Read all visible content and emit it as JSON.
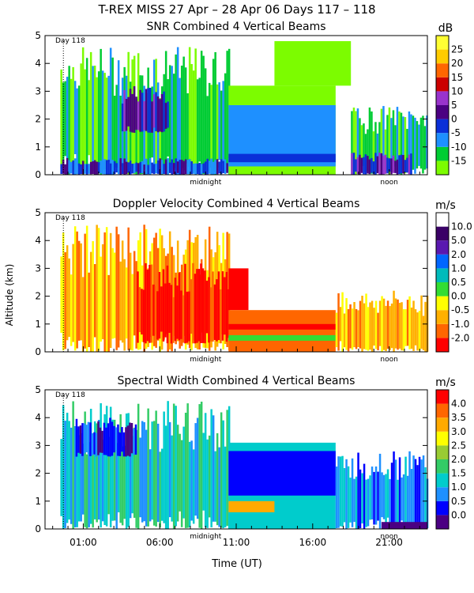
{
  "header": {
    "title": "T-REX MISS    27 Apr – 28 Apr 06 Days 117 – 118"
  },
  "colors": {
    "snr": [
      "#7cfc00",
      "#00cc33",
      "#1e90ff",
      "#0a2fd8",
      "#4b0082",
      "#9933cc",
      "#cc0000",
      "#ff6600",
      "#ffcc00",
      "#ffff33"
    ],
    "velocity": [
      "#ff0000",
      "#ff6600",
      "#ffb000",
      "#ffff00",
      "#33dd33",
      "#00bbbb",
      "#0066ff",
      "#5a18b0",
      "#3a0066",
      "#ffffff"
    ],
    "width": [
      "#4b0082",
      "#0000ff",
      "#1e90ff",
      "#00cccc",
      "#33cc66",
      "#99cc33",
      "#ffff00",
      "#ffaa00",
      "#ff6600",
      "#ff0000"
    ]
  },
  "chart_data": [
    {
      "type": "heatmap",
      "title": "SNR Combined 4 Vertical Beams",
      "day_label": "Day 118",
      "ylabel": "Altitude (km)",
      "ylim": [
        0,
        5
      ],
      "yticks": [
        "0",
        "1",
        "2",
        "3",
        "4",
        "5"
      ],
      "xlim": [
        -1.5,
        23.5
      ],
      "x_markers": [
        {
          "x": 9,
          "label": "midnight"
        },
        {
          "x": 21,
          "label": "noon"
        }
      ],
      "colorbar": {
        "unit": "dB",
        "labels": [
          "-15",
          "-10",
          "-5",
          "0",
          "5",
          "10",
          "15",
          "20",
          "25"
        ]
      },
      "regions": [
        {
          "x": [
            -0.5,
            10.5
          ],
          "y": [
            0,
            4.6
          ],
          "level": 1,
          "noise": true
        },
        {
          "x": [
            3.5,
            6.5
          ],
          "y": [
            1.5,
            3.2
          ],
          "level": 4,
          "noise": true
        },
        {
          "x": [
            -0.5,
            10.5
          ],
          "y": [
            0,
            0.6
          ],
          "level": 3,
          "noise": true
        },
        {
          "x": [
            10.5,
            17.5
          ],
          "y": [
            0,
            3.2
          ],
          "level": 0
        },
        {
          "x": [
            10.5,
            17.5
          ],
          "y": [
            0.3,
            2.5
          ],
          "level": 2
        },
        {
          "x": [
            10.5,
            17.5
          ],
          "y": [
            0.45,
            0.75
          ],
          "level": 3
        },
        {
          "x": [
            13.5,
            18.5
          ],
          "y": [
            3.2,
            4.8
          ],
          "level": 0
        },
        {
          "x": [
            18.5,
            23.5
          ],
          "y": [
            0,
            2.5
          ],
          "level": 1,
          "noise": true
        },
        {
          "x": [
            18.5,
            22.5
          ],
          "y": [
            0,
            0.8
          ],
          "level": 4,
          "noise": true
        }
      ]
    },
    {
      "type": "heatmap",
      "title": "Doppler Velocity Combined 4 Vertical Beams",
      "day_label": "Day 118",
      "ylabel": "Altitude (km)",
      "ylim": [
        0,
        5
      ],
      "yticks": [
        "0",
        "1",
        "2",
        "3",
        "4",
        "5"
      ],
      "xlim": [
        -1.5,
        23.5
      ],
      "x_markers": [
        {
          "x": 9,
          "label": "midnight"
        },
        {
          "x": 21,
          "label": "noon"
        }
      ],
      "colorbar": {
        "unit": "m/s",
        "labels": [
          "-2.0",
          "-1.0",
          "-0.5",
          "0.0",
          "0.5",
          "1.0",
          "2.0",
          "5.0",
          "10.0"
        ]
      },
      "regions": [
        {
          "x": [
            -0.5,
            10.5
          ],
          "y": [
            0,
            4.6
          ],
          "level": 2,
          "noise": true
        },
        {
          "x": [
            4.5,
            10.5
          ],
          "y": [
            0.3,
            3.2
          ],
          "level": 0,
          "noise": true
        },
        {
          "x": [
            10.5,
            11.8
          ],
          "y": [
            1.5,
            3.0
          ],
          "level": 0
        },
        {
          "x": [
            10.5,
            17.5
          ],
          "y": [
            0,
            1.5
          ],
          "level": 1
        },
        {
          "x": [
            10.5,
            17.5
          ],
          "y": [
            0.4,
            0.6
          ],
          "level": 4
        },
        {
          "x": [
            10.5,
            17.5
          ],
          "y": [
            0.8,
            1.0
          ],
          "level": 0
        },
        {
          "x": [
            17.5,
            23.5
          ],
          "y": [
            0,
            2.2
          ],
          "level": 2,
          "noise": true
        }
      ]
    },
    {
      "type": "heatmap",
      "title": "Spectral Width Combined 4 Vertical Beams",
      "day_label": "Day 118",
      "ylabel": "Altitude (km)",
      "xlabel": "Time (UT)",
      "ylim": [
        0,
        5
      ],
      "yticks": [
        "0",
        "1",
        "2",
        "3",
        "4",
        "5"
      ],
      "xlim": [
        -1.5,
        23.5
      ],
      "xticks": [
        "01:00",
        "06:00",
        "11:00",
        "16:00",
        "21:00"
      ],
      "x_markers": [
        {
          "x": 9,
          "label": "midnight"
        },
        {
          "x": 21,
          "label": "noon"
        }
      ],
      "colorbar": {
        "unit": "m/s",
        "labels": [
          "0.0",
          "0.5",
          "1.0",
          "1.5",
          "2.0",
          "2.5",
          "3.0",
          "3.5",
          "4.0"
        ]
      },
      "regions": [
        {
          "x": [
            -0.5,
            10.5
          ],
          "y": [
            0,
            4.6
          ],
          "level": 3,
          "noise": true
        },
        {
          "x": [
            0.5,
            4.5
          ],
          "y": [
            2.6,
            4.0
          ],
          "level": 1,
          "noise": true
        },
        {
          "x": [
            10.5,
            17.5
          ],
          "y": [
            0,
            3.1
          ],
          "level": 3
        },
        {
          "x": [
            10.5,
            17.5
          ],
          "y": [
            1.2,
            2.8
          ],
          "level": 1
        },
        {
          "x": [
            10.5,
            13.5
          ],
          "y": [
            0.6,
            1.0
          ],
          "level": 7
        },
        {
          "x": [
            17.5,
            23.5
          ],
          "y": [
            0,
            2.8
          ],
          "level": 2,
          "noise": true
        },
        {
          "x": [
            20.5,
            23.5
          ],
          "y": [
            0,
            0.25
          ],
          "level": 0
        }
      ]
    }
  ]
}
